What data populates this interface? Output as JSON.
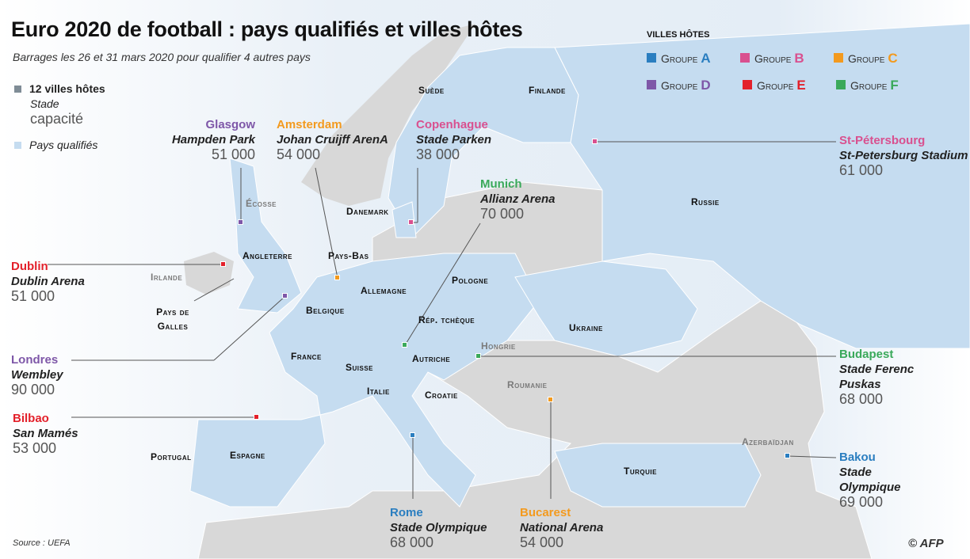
{
  "title": "Euro 2020 de football : pays qualifiés et villes hôtes",
  "subtitle": "Barrages les 26 et 31 mars 2020 pour qualifier 4 autres pays",
  "legend": {
    "host_cities": "12 villes hôtes",
    "stadium": "Stade",
    "capacity": "capacité",
    "qualified": "Pays qualifiés",
    "host_color": "#7f8c96",
    "qualified_color": "#c5dcf0"
  },
  "groups_legend": {
    "title": "villes hôtes",
    "groups": [
      {
        "label": "Groupe",
        "letter": "A",
        "color": "#2a7ec0"
      },
      {
        "label": "Groupe",
        "letter": "B",
        "color": "#d9508f"
      },
      {
        "label": "Groupe",
        "letter": "C",
        "color": "#f39a1e"
      },
      {
        "label": "Groupe",
        "letter": "D",
        "color": "#7e57a8"
      },
      {
        "label": "Groupe",
        "letter": "E",
        "color": "#e3202a"
      },
      {
        "label": "Groupe",
        "letter": "F",
        "color": "#3aa95a"
      }
    ]
  },
  "cities": [
    {
      "name": "Glasgow",
      "stadium": "Hampden Park",
      "capacity": "51 000",
      "group": "D"
    },
    {
      "name": "Amsterdam",
      "stadium": "Johan Cruijff ArenA",
      "capacity": "54 000",
      "group": "C"
    },
    {
      "name": "Copenhague",
      "stadium": "Stade Parken",
      "capacity": "38 000",
      "group": "B"
    },
    {
      "name": "Munich",
      "stadium": "Allianz Arena",
      "capacity": "70 000",
      "group": "F"
    },
    {
      "name": "St-Pétersbourg",
      "stadium": "St-Petersburg Stadium",
      "capacity": "61 000",
      "group": "B"
    },
    {
      "name": "Dublin",
      "stadium": "Dublin Arena",
      "capacity": "51 000",
      "group": "E"
    },
    {
      "name": "Londres",
      "stadium": "Wembley",
      "capacity": "90 000",
      "group": "D"
    },
    {
      "name": "Bilbao",
      "stadium": "San Mamés",
      "capacity": "53 000",
      "group": "E"
    },
    {
      "name": "Budapest",
      "stadium": "Stade Ferenc Puskas",
      "capacity": "68 000",
      "group": "F"
    },
    {
      "name": "Bakou",
      "stadium": "Stade Olympique",
      "capacity": "69 000",
      "group": "A"
    },
    {
      "name": "Rome",
      "stadium": "Stade Olympique",
      "capacity": "68 000",
      "group": "A"
    },
    {
      "name": "Bucarest",
      "stadium": "National Arena",
      "capacity": "54 000",
      "group": "C"
    }
  ],
  "countries": [
    {
      "name": "Suède",
      "qualified": true
    },
    {
      "name": "Finlande",
      "qualified": true
    },
    {
      "name": "Danemark",
      "qualified": true
    },
    {
      "name": "Russie",
      "qualified": true
    },
    {
      "name": "Écosse",
      "qualified": false
    },
    {
      "name": "Angleterre",
      "qualified": true
    },
    {
      "name": "Irlande",
      "qualified": false
    },
    {
      "name": "Pays de Galles",
      "qualified": true
    },
    {
      "name": "Pays-Bas",
      "qualified": true
    },
    {
      "name": "Belgique",
      "qualified": true
    },
    {
      "name": "Allemagne",
      "qualified": true
    },
    {
      "name": "Pologne",
      "qualified": true
    },
    {
      "name": "Rép. tchèque",
      "qualified": true
    },
    {
      "name": "Ukraine",
      "qualified": true
    },
    {
      "name": "Hongrie",
      "qualified": false
    },
    {
      "name": "France",
      "qualified": true
    },
    {
      "name": "Suisse",
      "qualified": true
    },
    {
      "name": "Autriche",
      "qualified": true
    },
    {
      "name": "Italie",
      "qualified": true
    },
    {
      "name": "Croatie",
      "qualified": true
    },
    {
      "name": "Roumanie",
      "qualified": false
    },
    {
      "name": "Azerbaïdjan",
      "qualified": false
    },
    {
      "name": "Portugal",
      "qualified": true
    },
    {
      "name": "Espagne",
      "qualified": true
    },
    {
      "name": "Turquie",
      "qualified": true
    }
  ],
  "source": "Source : UEFA",
  "credit": "© AFP"
}
